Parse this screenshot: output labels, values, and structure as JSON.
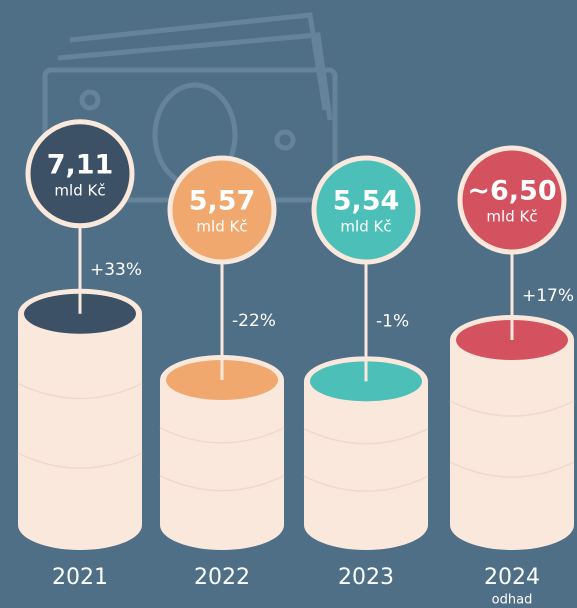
{
  "chart_data": {
    "type": "cylinder",
    "categories": [
      "2021",
      "2022",
      "2023",
      "2024"
    ],
    "notes": [
      null,
      null,
      null,
      "odhad"
    ],
    "values": [
      7.11,
      5.57,
      5.54,
      6.5
    ],
    "value_labels": [
      "7,11",
      "5,57",
      "5,54",
      "~6,50"
    ],
    "unit": "mld Kč",
    "changes": [
      33,
      -22,
      -1,
      17
    ],
    "change_labels": [
      "+33%",
      "-22%",
      "-1%",
      "+17%"
    ],
    "colors": [
      "#3d5166",
      "#f0a86e",
      "#4bbfb8",
      "#d4525f"
    ],
    "ylim": [
      2.2,
      7.5
    ]
  }
}
